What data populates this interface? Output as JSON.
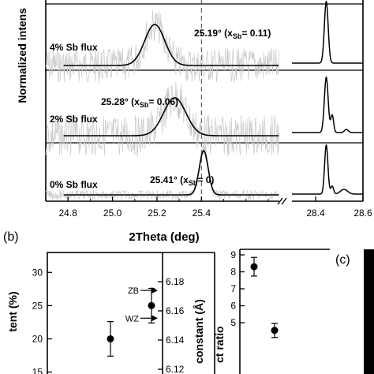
{
  "chart_data": [
    {
      "type": "line",
      "panel": "a",
      "xlabel": "2Theta (deg)",
      "ylabel": "Normalized intens",
      "xlim_left": [
        24.7,
        25.75
      ],
      "xlim_right": [
        28.3,
        28.6
      ],
      "x_ticks_left": [
        24.8,
        25.0,
        25.2,
        25.4
      ],
      "x_ticks_right": [
        28.4,
        28.6
      ],
      "x_tick_labels": [
        "24.8",
        "25.0",
        "25.2",
        "25.4",
        "28.4",
        "28.6"
      ],
      "reference_line_x": 25.4,
      "grid": false,
      "series": [
        {
          "name": "4% Sb flux",
          "peak_x": 25.19,
          "x_sb": 0.11,
          "annotation": "25.19° (x",
          "annotation_value": "= 0.11)"
        },
        {
          "name": "2% Sb flux",
          "peak_x": 25.28,
          "x_sb": 0.06,
          "annotation": "25.28° (x",
          "annotation_value": "= 0.06)"
        },
        {
          "name": "0% Sb flux",
          "peak_x": 25.41,
          "x_sb": 0,
          "annotation": "25.41° (x",
          "annotation_value": "= 0)"
        }
      ],
      "sb_subscript": "Sb"
    },
    {
      "type": "scatter",
      "panel": "b",
      "ylabel_left": "tent (%)",
      "ylabel_right": "constant (Å)",
      "y_ticks_left": [
        15,
        20,
        25,
        30
      ],
      "y_ticks_left_labels": [
        "15",
        "20",
        "25",
        "30"
      ],
      "y_ticks_right": [
        6.12,
        6.14,
        6.16,
        6.18
      ],
      "y_ticks_right_labels": [
        "6.12",
        "6.14",
        "6.16",
        "6.18"
      ],
      "ylim_left": [
        14,
        33
      ],
      "markers": [
        {
          "label": "ZB",
          "value_right": 6.174
        },
        {
          "label": "WZ",
          "value_right": 6.155
        }
      ],
      "points": [
        {
          "y": 20,
          "err": 2.6
        },
        {
          "y": 25,
          "err": 2.6
        }
      ]
    },
    {
      "type": "scatter",
      "panel": "c",
      "ylabel": "ct ratio",
      "y_ticks": [
        5,
        6,
        7,
        8,
        9
      ],
      "y_tick_labels": [
        "5",
        "6",
        "7",
        "8",
        "9"
      ],
      "ylim": [
        5,
        9
      ],
      "points": [
        {
          "y": 8.3,
          "err": 0.55
        },
        {
          "y": 4.55,
          "err": 0.42
        }
      ]
    }
  ],
  "panel_labels": {
    "b": "(b)",
    "c": "(c)"
  },
  "axis_break": "//"
}
